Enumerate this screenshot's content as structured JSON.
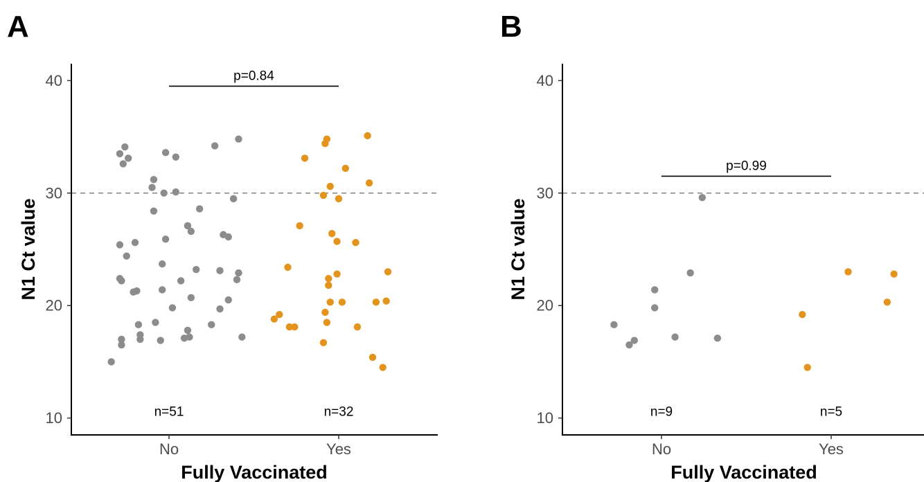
{
  "colors": {
    "no": "#8c8c8c",
    "yes": "#e3941f"
  },
  "chart_data": [
    {
      "panel": "A",
      "type": "scatter",
      "xlabel": "Fully Vaccinated",
      "ylabel": "N1 Ct value",
      "categories": [
        "No",
        "Yes"
      ],
      "ylim": [
        8.5,
        41.5
      ],
      "yticks": [
        "10",
        "20",
        "30",
        "40"
      ],
      "reference_line": 30,
      "p_value_label": "p=0.84",
      "p_bracket_y": 39.5,
      "n_labels": [
        "n=51",
        "n=32"
      ],
      "n_label_y": 10.2,
      "series": [
        {
          "category": "No",
          "points": [
            [
              -0.34,
              15.0
            ],
            [
              -0.28,
              16.5
            ],
            [
              -0.28,
              17.0
            ],
            [
              -0.28,
              22.2
            ],
            [
              -0.29,
              22.4
            ],
            [
              -0.29,
              25.4
            ],
            [
              -0.29,
              33.5
            ],
            [
              -0.27,
              32.6
            ],
            [
              -0.26,
              34.1
            ],
            [
              -0.24,
              33.1
            ],
            [
              -0.25,
              24.4
            ],
            [
              -0.18,
              18.3
            ],
            [
              -0.17,
              17.4
            ],
            [
              -0.17,
              17.0
            ],
            [
              -0.19,
              21.3
            ],
            [
              -0.21,
              21.2
            ],
            [
              -0.2,
              25.6
            ],
            [
              -0.1,
              30.5
            ],
            [
              -0.09,
              31.2
            ],
            [
              -0.09,
              28.4
            ],
            [
              -0.08,
              18.5
            ],
            [
              -0.05,
              16.9
            ],
            [
              -0.04,
              23.7
            ],
            [
              -0.04,
              21.4
            ],
            [
              -0.02,
              33.6
            ],
            [
              -0.03,
              30.0
            ],
            [
              -0.02,
              25.9
            ],
            [
              0.04,
              33.2
            ],
            [
              0.04,
              30.1
            ],
            [
              0.02,
              19.8
            ],
            [
              0.07,
              22.2
            ],
            [
              0.09,
              17.1
            ],
            [
              0.11,
              17.8
            ],
            [
              0.12,
              17.2
            ],
            [
              0.11,
              27.1
            ],
            [
              0.13,
              26.6
            ],
            [
              0.13,
              20.7
            ],
            [
              0.16,
              23.2
            ],
            [
              0.18,
              28.6
            ],
            [
              0.25,
              18.3
            ],
            [
              0.27,
              34.2
            ],
            [
              0.3,
              19.7
            ],
            [
              0.3,
              23.1
            ],
            [
              0.32,
              26.3
            ],
            [
              0.35,
              26.1
            ],
            [
              0.35,
              20.5
            ],
            [
              0.38,
              29.5
            ],
            [
              0.4,
              22.3
            ],
            [
              0.41,
              22.9
            ],
            [
              0.41,
              34.8
            ],
            [
              0.43,
              17.2
            ]
          ]
        },
        {
          "category": "Yes",
          "points": [
            [
              -0.38,
              18.8
            ],
            [
              -0.35,
              19.2
            ],
            [
              -0.29,
              18.1
            ],
            [
              -0.26,
              18.1
            ],
            [
              -0.3,
              23.4
            ],
            [
              -0.23,
              27.1
            ],
            [
              -0.2,
              33.1
            ],
            [
              -0.09,
              16.7
            ],
            [
              -0.09,
              29.8
            ],
            [
              -0.08,
              19.4
            ],
            [
              -0.08,
              34.4
            ],
            [
              -0.07,
              34.8
            ],
            [
              -0.07,
              18.5
            ],
            [
              -0.06,
              21.8
            ],
            [
              -0.06,
              22.4
            ],
            [
              -0.05,
              20.3
            ],
            [
              -0.05,
              30.6
            ],
            [
              -0.04,
              26.4
            ],
            [
              -0.01,
              22.8
            ],
            [
              -0.01,
              25.7
            ],
            [
              0.0,
              29.5
            ],
            [
              0.02,
              20.3
            ],
            [
              0.04,
              32.2
            ],
            [
              0.1,
              25.6
            ],
            [
              0.11,
              18.1
            ],
            [
              0.17,
              35.1
            ],
            [
              0.18,
              30.9
            ],
            [
              0.2,
              15.4
            ],
            [
              0.22,
              20.3
            ],
            [
              0.26,
              14.5
            ],
            [
              0.28,
              20.4
            ],
            [
              0.29,
              23.0
            ]
          ]
        }
      ]
    },
    {
      "panel": "B",
      "type": "scatter",
      "xlabel": "Fully Vaccinated",
      "ylabel": "N1 Ct value",
      "categories": [
        "No",
        "Yes"
      ],
      "ylim": [
        8.5,
        41.5
      ],
      "yticks": [
        "10",
        "20",
        "30",
        "40"
      ],
      "reference_line": 30,
      "p_value_label": "p=0.99",
      "p_bracket_y": 31.5,
      "n_labels": [
        "n=9",
        "n=5"
      ],
      "n_label_y": 10.2,
      "series": [
        {
          "category": "No",
          "points": [
            [
              -0.28,
              18.3
            ],
            [
              -0.19,
              16.5
            ],
            [
              -0.16,
              16.9
            ],
            [
              -0.04,
              21.4
            ],
            [
              -0.04,
              19.8
            ],
            [
              0.08,
              17.2
            ],
            [
              0.17,
              22.9
            ],
            [
              0.24,
              29.6
            ],
            [
              0.33,
              17.1
            ]
          ]
        },
        {
          "category": "Yes",
          "points": [
            [
              -0.17,
              19.2
            ],
            [
              -0.14,
              14.5
            ],
            [
              0.1,
              23.0
            ],
            [
              0.33,
              20.3
            ],
            [
              0.37,
              22.8
            ]
          ]
        }
      ]
    }
  ]
}
